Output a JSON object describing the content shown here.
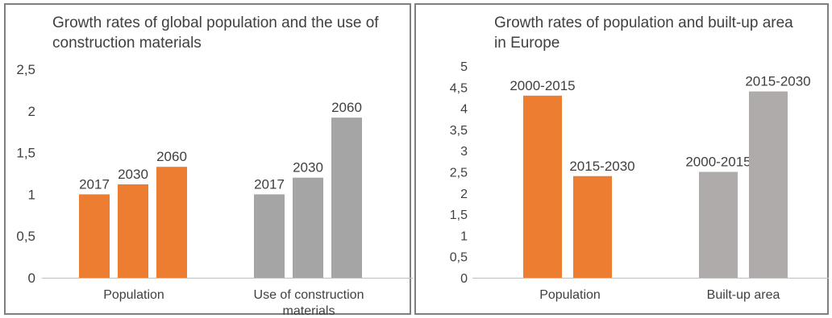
{
  "chart_data": [
    {
      "type": "bar",
      "title": "Growth rates of global population and the use of construction materials",
      "xlabel": "",
      "ylabel": "",
      "ylim": [
        0,
        2.5
      ],
      "yticks": [
        "0",
        "0,5",
        "1",
        "1,5",
        "2",
        "2,5"
      ],
      "categories": [
        "Population",
        "Use of construction materials"
      ],
      "grid": false,
      "legend": "none",
      "series": [
        {
          "values": [
            1,
            1
          ],
          "labels": [
            "2017",
            "2017"
          ]
        },
        {
          "values": [
            1.12,
            1.2
          ],
          "labels": [
            "2030",
            "2030"
          ]
        },
        {
          "values": [
            1.33,
            1.92
          ],
          "labels": [
            "2060",
            "2060"
          ]
        }
      ],
      "category_colors": [
        "#ed7d31",
        "#a5a5a5"
      ]
    },
    {
      "type": "bar",
      "title": "Growth rates of population and built-up area in Europe",
      "xlabel": "",
      "ylabel": "",
      "ylim": [
        0,
        5
      ],
      "yticks": [
        "0",
        "0,5",
        "1",
        "1,5",
        "2",
        "2,5",
        "3",
        "3,5",
        "4",
        "4,5",
        "5"
      ],
      "categories": [
        "Population",
        "Built-up area"
      ],
      "grid": false,
      "legend": "none",
      "series": [
        {
          "values": [
            4.3,
            2.5
          ],
          "labels": [
            "2000-2015",
            "2000-2015"
          ]
        },
        {
          "values": [
            2.4,
            4.4
          ],
          "labels": [
            "2015-2030",
            "2015-2030"
          ]
        }
      ],
      "category_colors": [
        "#ed7d31",
        "#afabab"
      ]
    }
  ]
}
